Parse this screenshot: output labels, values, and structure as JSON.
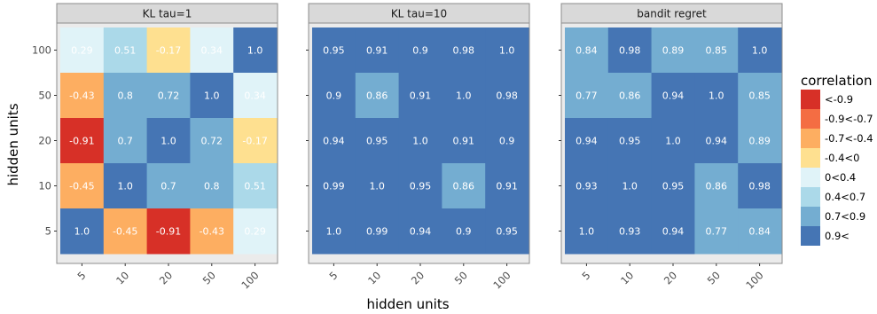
{
  "chart_data": {
    "type": "heatmap",
    "xlabel": "hidden units",
    "ylabel": "hidden units",
    "x_categories": [
      "5",
      "10",
      "20",
      "50",
      "100"
    ],
    "y_categories": [
      "100",
      "50",
      "20",
      "10",
      "5"
    ],
    "legend": {
      "title": "correlation",
      "placement": "right",
      "items": [
        {
          "label": "<-0.9",
          "color": "#d73027"
        },
        {
          "label": "-0.9<-0.7",
          "color": "#f46d43"
        },
        {
          "label": "-0.7<-0.4",
          "color": "#fdae61"
        },
        {
          "label": "-0.4<0",
          "color": "#fee090"
        },
        {
          "label": "0<0.4",
          "color": "#e0f3f8"
        },
        {
          "label": "0.4<0.7",
          "color": "#abd9e9"
        },
        {
          "label": "0.7<0.9",
          "color": "#74add1"
        },
        {
          "label": "0.9<",
          "color": "#4575b4"
        }
      ]
    },
    "panels": [
      {
        "title": "KL tau=1",
        "values": [
          [
            0.29,
            0.51,
            -0.17,
            0.34,
            1.0
          ],
          [
            -0.43,
            0.8,
            0.72,
            1.0,
            0.34
          ],
          [
            -0.91,
            0.7,
            1.0,
            0.72,
            -0.17
          ],
          [
            -0.45,
            1.0,
            0.7,
            0.8,
            0.51
          ],
          [
            1.0,
            -0.45,
            -0.91,
            -0.43,
            0.29
          ]
        ]
      },
      {
        "title": "KL tau=10",
        "values": [
          [
            0.95,
            0.91,
            0.9,
            0.98,
            1.0
          ],
          [
            0.9,
            0.86,
            0.91,
            1.0,
            0.98
          ],
          [
            0.94,
            0.95,
            1.0,
            0.91,
            0.9
          ],
          [
            0.99,
            1.0,
            0.95,
            0.86,
            0.91
          ],
          [
            1.0,
            0.99,
            0.94,
            0.9,
            0.95
          ]
        ]
      },
      {
        "title": "bandit regret",
        "values": [
          [
            0.84,
            0.98,
            0.89,
            0.85,
            1.0
          ],
          [
            0.77,
            0.86,
            0.94,
            1.0,
            0.85
          ],
          [
            0.94,
            0.95,
            1.0,
            0.94,
            0.89
          ],
          [
            0.93,
            1.0,
            0.95,
            0.86,
            0.98
          ],
          [
            1.0,
            0.93,
            0.94,
            0.77,
            0.84
          ]
        ]
      }
    ],
    "background_color": "#ebebeb",
    "strip_color": "#d9d9d9"
  }
}
